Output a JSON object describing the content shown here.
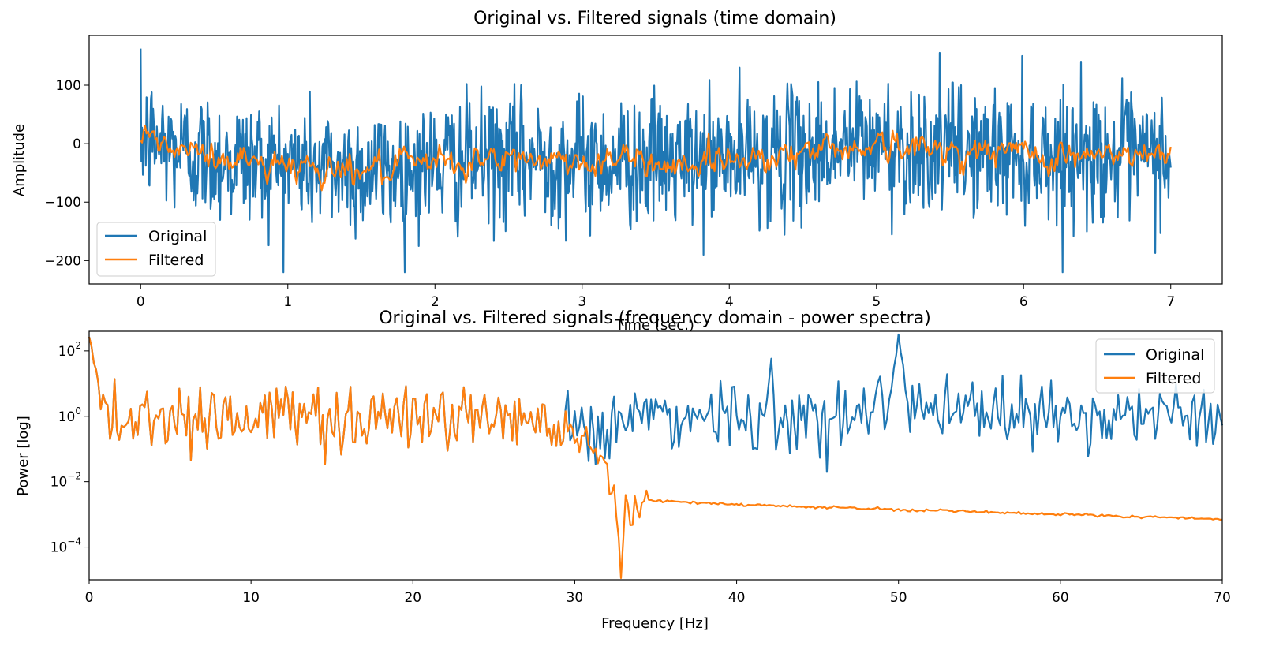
{
  "colors": {
    "original": "#1f77b4",
    "filtered": "#ff7f0e"
  },
  "chart_data": [
    {
      "type": "line",
      "title": "Original vs. Filtered signals (time domain)",
      "xlabel": "Time (sec.)",
      "ylabel": "Amplitude",
      "xlim": [
        -0.35,
        7.35
      ],
      "ylim": [
        -240,
        185
      ],
      "xticks": [
        0,
        1,
        2,
        3,
        4,
        5,
        6,
        7
      ],
      "xtick_labels": [
        "0",
        "1",
        "2",
        "3",
        "4",
        "5",
        "6",
        "7"
      ],
      "yticks": [
        100,
        0,
        -100,
        -200
      ],
      "ytick_labels": [
        "100",
        "0",
        "−100",
        "−200"
      ],
      "legend": {
        "position": "lower-left",
        "entries": [
          "Original",
          "Filtered"
        ]
      },
      "grid": false,
      "series": [
        {
          "name": "Original",
          "color": "#1f77b4",
          "x": [
            0,
            0.25,
            0.5,
            0.75,
            1,
            1.25,
            1.5,
            1.75,
            2,
            2.25,
            2.5,
            2.75,
            3,
            3.25,
            3.5,
            3.75,
            4,
            4.25,
            4.5,
            4.75,
            5,
            5.25,
            5.5,
            5.75,
            6,
            6.25,
            6.5,
            6.75,
            7
          ],
          "y_mean": [
            10,
            -10,
            -25,
            -30,
            -35,
            -40,
            -45,
            -45,
            -35,
            -30,
            -30,
            -25,
            -30,
            -30,
            -30,
            -35,
            -25,
            -20,
            -15,
            -5,
            0,
            -10,
            -10,
            -15,
            -15,
            -20,
            -20,
            -25,
            -20
          ],
          "y_noise_std": 55,
          "y_max_observed": 170,
          "y_min_observed": -220
        },
        {
          "name": "Filtered",
          "color": "#ff7f0e",
          "x": [
            0,
            0.25,
            0.5,
            0.75,
            1,
            1.25,
            1.5,
            1.75,
            2,
            2.25,
            2.5,
            2.75,
            3,
            3.25,
            3.5,
            3.75,
            4,
            4.25,
            4.5,
            4.75,
            5,
            5.25,
            5.5,
            5.75,
            6,
            6.25,
            6.5,
            6.75,
            7
          ],
          "y_mean": [
            10,
            -10,
            -25,
            -30,
            -35,
            -40,
            -45,
            -45,
            -35,
            -30,
            -30,
            -25,
            -30,
            -30,
            -30,
            -35,
            -25,
            -20,
            -15,
            -5,
            0,
            -10,
            -10,
            -15,
            -15,
            -20,
            -20,
            -25,
            -20
          ],
          "y_noise_std": 18
        }
      ]
    },
    {
      "type": "line",
      "title": "Original vs. Filtered signals (frequency domain - power spectra)",
      "xlabel": "Frequency [Hz]",
      "ylabel": "Power [log]",
      "xlim": [
        0,
        70
      ],
      "ylim_log10": [
        -5.0,
        2.6
      ],
      "yscale": "log",
      "xticks": [
        0,
        10,
        20,
        30,
        40,
        50,
        60,
        70
      ],
      "xtick_labels": [
        "0",
        "10",
        "20",
        "30",
        "40",
        "50",
        "60",
        "70"
      ],
      "yticks_log10": [
        2,
        0,
        -2,
        -4
      ],
      "ytick_bases": [
        "10",
        "10",
        "10",
        "10"
      ],
      "ytick_exponents": [
        "2",
        "0",
        "−2",
        "−4"
      ],
      "legend": {
        "position": "top-right",
        "entries": [
          "Original",
          "Filtered"
        ]
      },
      "grid": false,
      "series": [
        {
          "name": "Original",
          "color": "#1f77b4",
          "x": [
            0,
            0.5,
            1,
            5,
            10,
            20,
            29.3,
            30,
            35,
            40,
            45,
            49.5,
            50,
            50.5,
            55,
            60,
            65,
            70
          ],
          "log10_power_baseline": [
            2.5,
            1.3,
            0,
            0,
            0,
            0,
            0,
            -0.3,
            0,
            0,
            0,
            0.5,
            2.6,
            0.5,
            0,
            0,
            0,
            0
          ],
          "log10_noise_std": 0.55
        },
        {
          "name": "Filtered",
          "color": "#ff7f0e",
          "x": [
            0,
            0.5,
            1,
            5,
            10,
            20,
            29.3,
            30,
            31,
            32,
            32.5,
            32.8,
            33.2,
            33.5,
            34,
            36,
            40,
            50,
            60,
            70
          ],
          "log10_power_baseline": [
            2.5,
            1.3,
            0,
            0,
            0,
            0,
            0,
            -0.5,
            -0.8,
            -1.5,
            -2.5,
            -4.6,
            -2.8,
            -3.4,
            -2.55,
            -2.6,
            -2.7,
            -2.85,
            -3.0,
            -3.15
          ],
          "log10_noise_std_below_30hz": 0.55
        }
      ]
    }
  ]
}
